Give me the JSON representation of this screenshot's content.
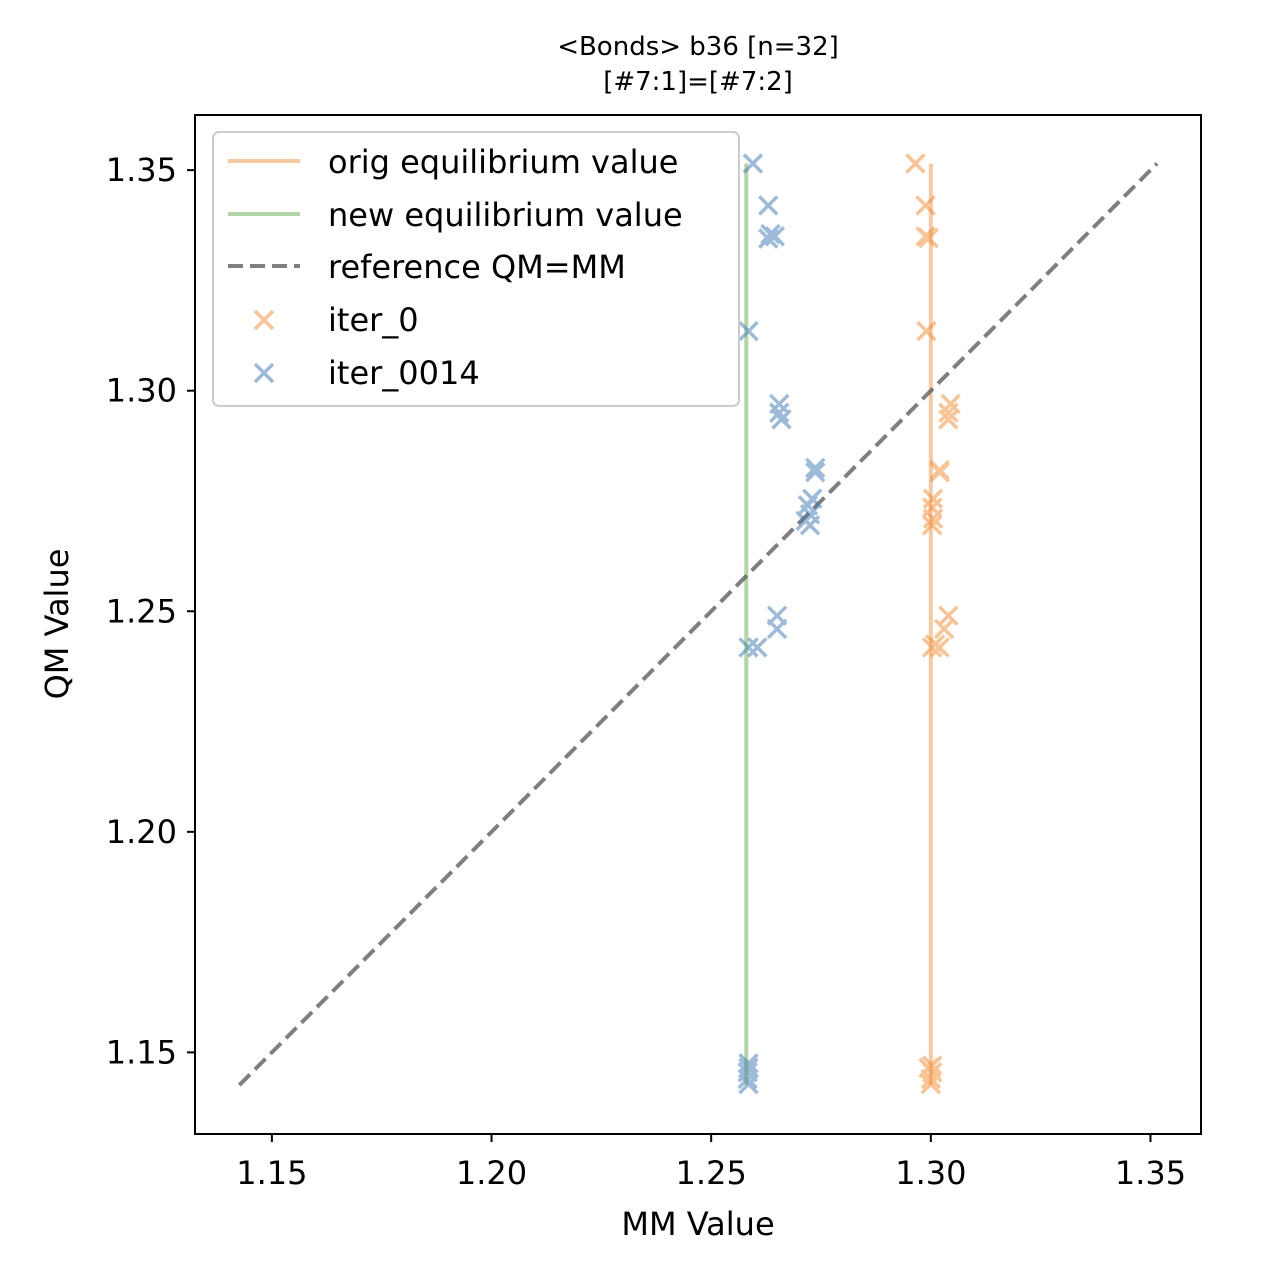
{
  "chart_data": {
    "type": "scatter",
    "title": "<Bonds> b36 [n=32]",
    "subtitle": "[#7:1]=[#7:2]",
    "xlabel": "MM Value",
    "ylabel": "QM Value",
    "xlim": [
      1.1325,
      1.3615
    ],
    "ylim": [
      1.1315,
      1.3625
    ],
    "xticks": [
      "1.15",
      "1.20",
      "1.25",
      "1.30",
      "1.35"
    ],
    "yticks": [
      "1.15",
      "1.20",
      "1.25",
      "1.30",
      "1.35"
    ],
    "grid": false,
    "legend_position": "top-left",
    "orig_equilibrium": {
      "label": "orig equilibrium value",
      "x": 1.3,
      "y_range": [
        1.1426,
        1.3515
      ],
      "color": "#f4a463"
    },
    "new_equilibrium": {
      "label": "new equilibrium value",
      "x": 1.258,
      "y_range": [
        1.1426,
        1.3515
      ],
      "color": "#7fba6b"
    },
    "reference": {
      "label": "reference QM=MM",
      "from": [
        1.1426,
        1.1426
      ],
      "to": [
        1.3515,
        1.3515
      ],
      "color": "#555555"
    },
    "series": [
      {
        "name": "iter_0",
        "color": "#f28a30",
        "points": [
          [
            1.2965,
            1.3515
          ],
          [
            1.2988,
            1.342
          ],
          [
            1.2988,
            1.335
          ],
          [
            1.2995,
            1.3346
          ],
          [
            1.299,
            1.3135
          ],
          [
            1.3045,
            1.297
          ],
          [
            1.304,
            1.295
          ],
          [
            1.304,
            1.2935
          ],
          [
            1.302,
            1.282
          ],
          [
            1.302,
            1.2815
          ],
          [
            1.3005,
            1.2755
          ],
          [
            1.3003,
            1.2735
          ],
          [
            1.3005,
            1.271
          ],
          [
            1.3003,
            1.2695
          ],
          [
            1.304,
            1.249
          ],
          [
            1.303,
            1.246
          ],
          [
            1.3003,
            1.2418
          ],
          [
            1.302,
            1.2418
          ],
          [
            1.301,
            1.2425
          ],
          [
            1.3003,
            1.147
          ],
          [
            1.2995,
            1.1465
          ],
          [
            1.3003,
            1.1455
          ],
          [
            1.3,
            1.144
          ],
          [
            1.3,
            1.1428
          ]
        ]
      },
      {
        "name": "iter_0014",
        "color": "#3d7ab3",
        "points": [
          [
            1.2595,
            1.3515
          ],
          [
            1.263,
            1.342
          ],
          [
            1.2635,
            1.3355
          ],
          [
            1.2645,
            1.335
          ],
          [
            1.263,
            1.3345
          ],
          [
            1.2585,
            1.3135
          ],
          [
            1.2655,
            1.297
          ],
          [
            1.2655,
            1.295
          ],
          [
            1.266,
            1.2935
          ],
          [
            1.2737,
            1.2825
          ],
          [
            1.2737,
            1.2815
          ],
          [
            1.273,
            1.2755
          ],
          [
            1.272,
            1.274
          ],
          [
            1.2725,
            1.272
          ],
          [
            1.2715,
            1.2705
          ],
          [
            1.2725,
            1.2695
          ],
          [
            1.265,
            1.249
          ],
          [
            1.265,
            1.246
          ],
          [
            1.2585,
            1.2418
          ],
          [
            1.2605,
            1.2418
          ],
          [
            1.2585,
            1.1475
          ],
          [
            1.2585,
            1.1465
          ],
          [
            1.2583,
            1.1455
          ],
          [
            1.2583,
            1.144
          ],
          [
            1.2585,
            1.1428
          ]
        ]
      }
    ]
  }
}
